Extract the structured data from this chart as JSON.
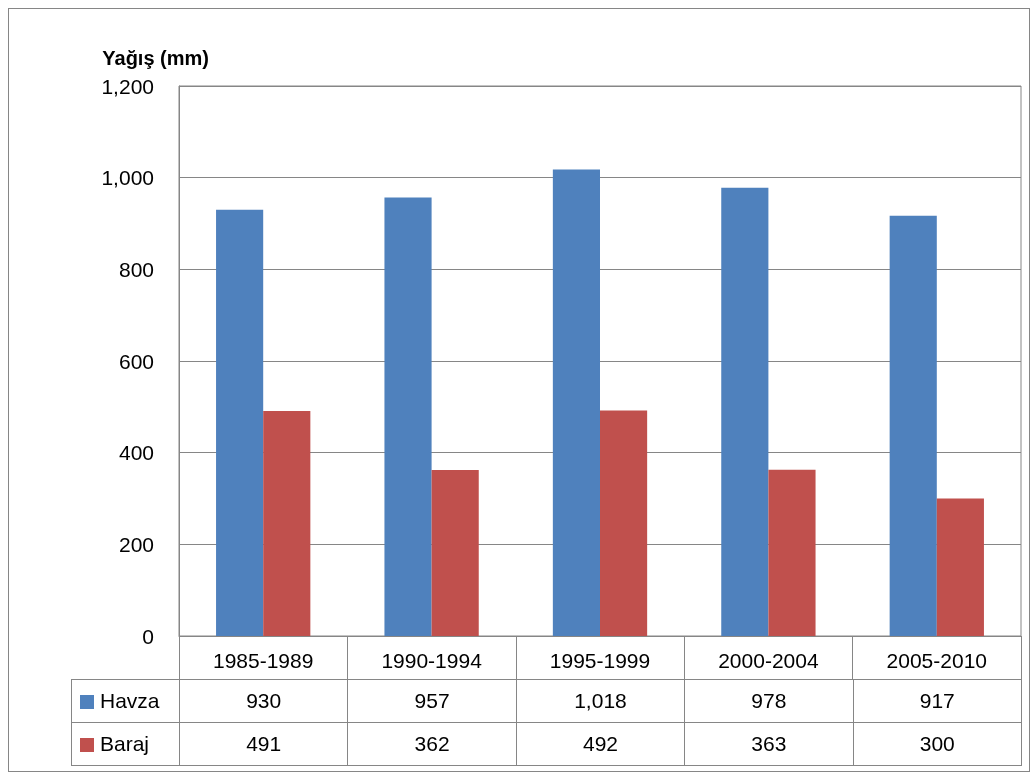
{
  "chart_data": {
    "type": "bar",
    "ylabel": "Yağış (mm)",
    "categories": [
      "1985-1989",
      "1990-1994",
      "1995-1999",
      "2000-2004",
      "2005-2010"
    ],
    "series": [
      {
        "name": "Havza",
        "color": "#4f81bd",
        "values": [
          930,
          957,
          1018,
          978,
          917
        ],
        "value_labels": [
          "930",
          "957",
          "1,018",
          "978",
          "917"
        ]
      },
      {
        "name": "Baraj",
        "color": "#c0504d",
        "values": [
          491,
          362,
          492,
          363,
          300
        ],
        "value_labels": [
          "491",
          "362",
          "492",
          "363",
          "300"
        ]
      }
    ],
    "ylim": [
      0,
      1200
    ],
    "yticks": [
      0,
      200,
      400,
      600,
      800,
      {
        "value": 1000,
        "label": "1,000"
      },
      {
        "value": 1200,
        "label": "1,200"
      }
    ],
    "grid": "y",
    "legend": "bottom"
  }
}
